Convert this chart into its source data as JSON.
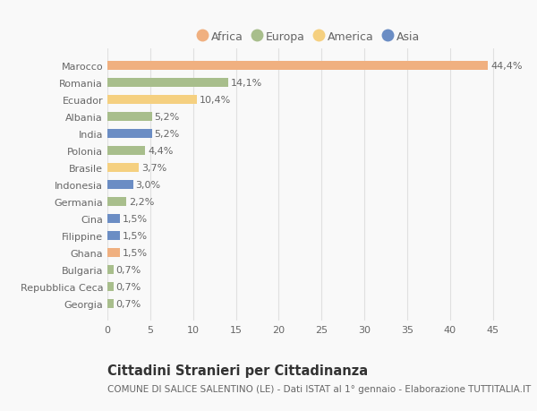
{
  "countries": [
    "Marocco",
    "Romania",
    "Ecuador",
    "Albania",
    "India",
    "Polonia",
    "Brasile",
    "Indonesia",
    "Germania",
    "Cina",
    "Filippine",
    "Ghana",
    "Bulgaria",
    "Repubblica Ceca",
    "Georgia"
  ],
  "values": [
    44.4,
    14.1,
    10.4,
    5.2,
    5.2,
    4.4,
    3.7,
    3.0,
    2.2,
    1.5,
    1.5,
    1.5,
    0.7,
    0.7,
    0.7
  ],
  "labels": [
    "44,4%",
    "14,1%",
    "10,4%",
    "5,2%",
    "5,2%",
    "4,4%",
    "3,7%",
    "3,0%",
    "2,2%",
    "1,5%",
    "1,5%",
    "1,5%",
    "0,7%",
    "0,7%",
    "0,7%"
  ],
  "continents": [
    "Africa",
    "Europa",
    "America",
    "Europa",
    "Asia",
    "Europa",
    "America",
    "Asia",
    "Europa",
    "Asia",
    "Asia",
    "Africa",
    "Europa",
    "Europa",
    "Europa"
  ],
  "continent_colors": {
    "Africa": "#F0B080",
    "Europa": "#A8BE8C",
    "America": "#F5D080",
    "Asia": "#6B8DC4"
  },
  "legend_order": [
    "Africa",
    "Europa",
    "America",
    "Asia"
  ],
  "title": "Cittadini Stranieri per Cittadinanza",
  "subtitle": "COMUNE DI SALICE SALENTINO (LE) - Dati ISTAT al 1° gennaio - Elaborazione TUTTITALIA.IT",
  "xlim": [
    0,
    47
  ],
  "xticks": [
    0,
    5,
    10,
    15,
    20,
    25,
    30,
    35,
    40,
    45
  ],
  "background_color": "#f9f9f9",
  "grid_color": "#e0e0e0",
  "bar_height": 0.55,
  "label_fontsize": 8,
  "tick_fontsize": 8,
  "title_fontsize": 10.5,
  "subtitle_fontsize": 7.5
}
